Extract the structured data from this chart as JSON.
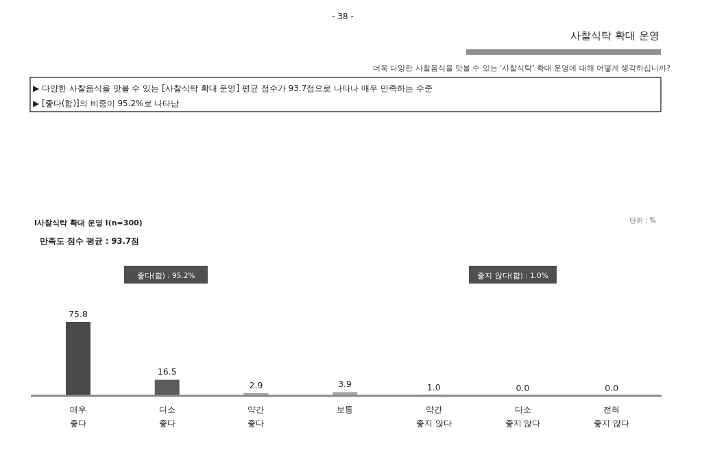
{
  "chart_data": {
    "type": "bar",
    "title": "사찰식탁 확대 운영",
    "subtitle": "더욱 다양한 사찰음식을 맛볼 수 있는 ‘사찰식탁’ 확대 운영에 대해 어떻게 생각하십니까?",
    "categories": [
      "매우\n좋다",
      "다소\n좋다",
      "약간\n좋다",
      "보통",
      "약간\n좋지 않다",
      "다소\n좋지 않다",
      "전혀\n좋지 않다"
    ],
    "values": [
      75.8,
      16.5,
      2.9,
      3.9,
      1.0,
      0.0,
      0.0
    ],
    "colors": [
      "#4a4a4a",
      "#5c5c5c",
      "#a6a6a6",
      "#a6a6a6",
      "#8a8a8a",
      "#8a8a8a",
      "#8a8a8a"
    ],
    "value_labels": [
      "75.8",
      "16.5",
      "2.9",
      "3.9",
      "1.0",
      "0.0",
      "0.0"
    ],
    "annotations": [
      "- 38 -",
      "▶ 다양한 사찰음식을 맛볼 수 있는 [사찰식탁 확대 운영] 평균 점수가 93.7점으로 나타나 매우 만족하는 수준",
      "▶ [좋다(합)]의 비중이 95.2%로 나타남",
      "I사찰식탁 확대 운영 I(n=300)",
      "만족도 점수 평균 : 93.7점",
      "단위 : %",
      "좋다(합) : 95.2%",
      "좋지 않다(합) : 1.0%"
    ]
  }
}
